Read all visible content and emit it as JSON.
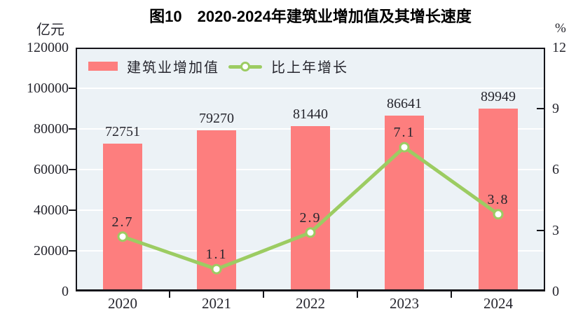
{
  "title": "图10　2020-2024年建筑业增加值及其增长速度",
  "legend": {
    "bar_label": "建筑业增加值",
    "line_label": "比上年增长"
  },
  "colors": {
    "bar": "#fd7e7e",
    "line": "#9ccc62",
    "plot_background": "#ecf2f6",
    "gridline": "#ffffff",
    "axis": "#15151a",
    "text": "#26262e"
  },
  "chart_data": {
    "type": "bar+line combo",
    "title": "图10　2020-2024年建筑业增加值及其增长速度",
    "categories": [
      "2020",
      "2021",
      "2022",
      "2023",
      "2024"
    ],
    "series": [
      {
        "name": "建筑业增加值",
        "type": "bar",
        "axis": "left",
        "values": [
          72751,
          79270,
          81440,
          86641,
          89949
        ]
      },
      {
        "name": "比上年增长",
        "type": "line",
        "axis": "right",
        "values": [
          2.7,
          1.1,
          2.9,
          7.1,
          3.8
        ]
      }
    ],
    "point_labels": [
      "2.7",
      "1.1",
      "2.9",
      "7.1",
      "3.8"
    ],
    "ylabel_left": "亿元",
    "ylabel_right": "%",
    "ylim_left": [
      0,
      120000
    ],
    "ystep_left": 20000,
    "left_tick_labels": [
      "0",
      "20000",
      "40000",
      "60000",
      "80000",
      "100000",
      "120000"
    ],
    "ylim_right": [
      0,
      12
    ],
    "ystep_right": 3,
    "right_tick_labels": [
      "0",
      "3",
      "6",
      "9",
      "12"
    ],
    "grid": "horizontal white gridlines on light blue plot background",
    "legend_position": "top-left inside plot"
  }
}
